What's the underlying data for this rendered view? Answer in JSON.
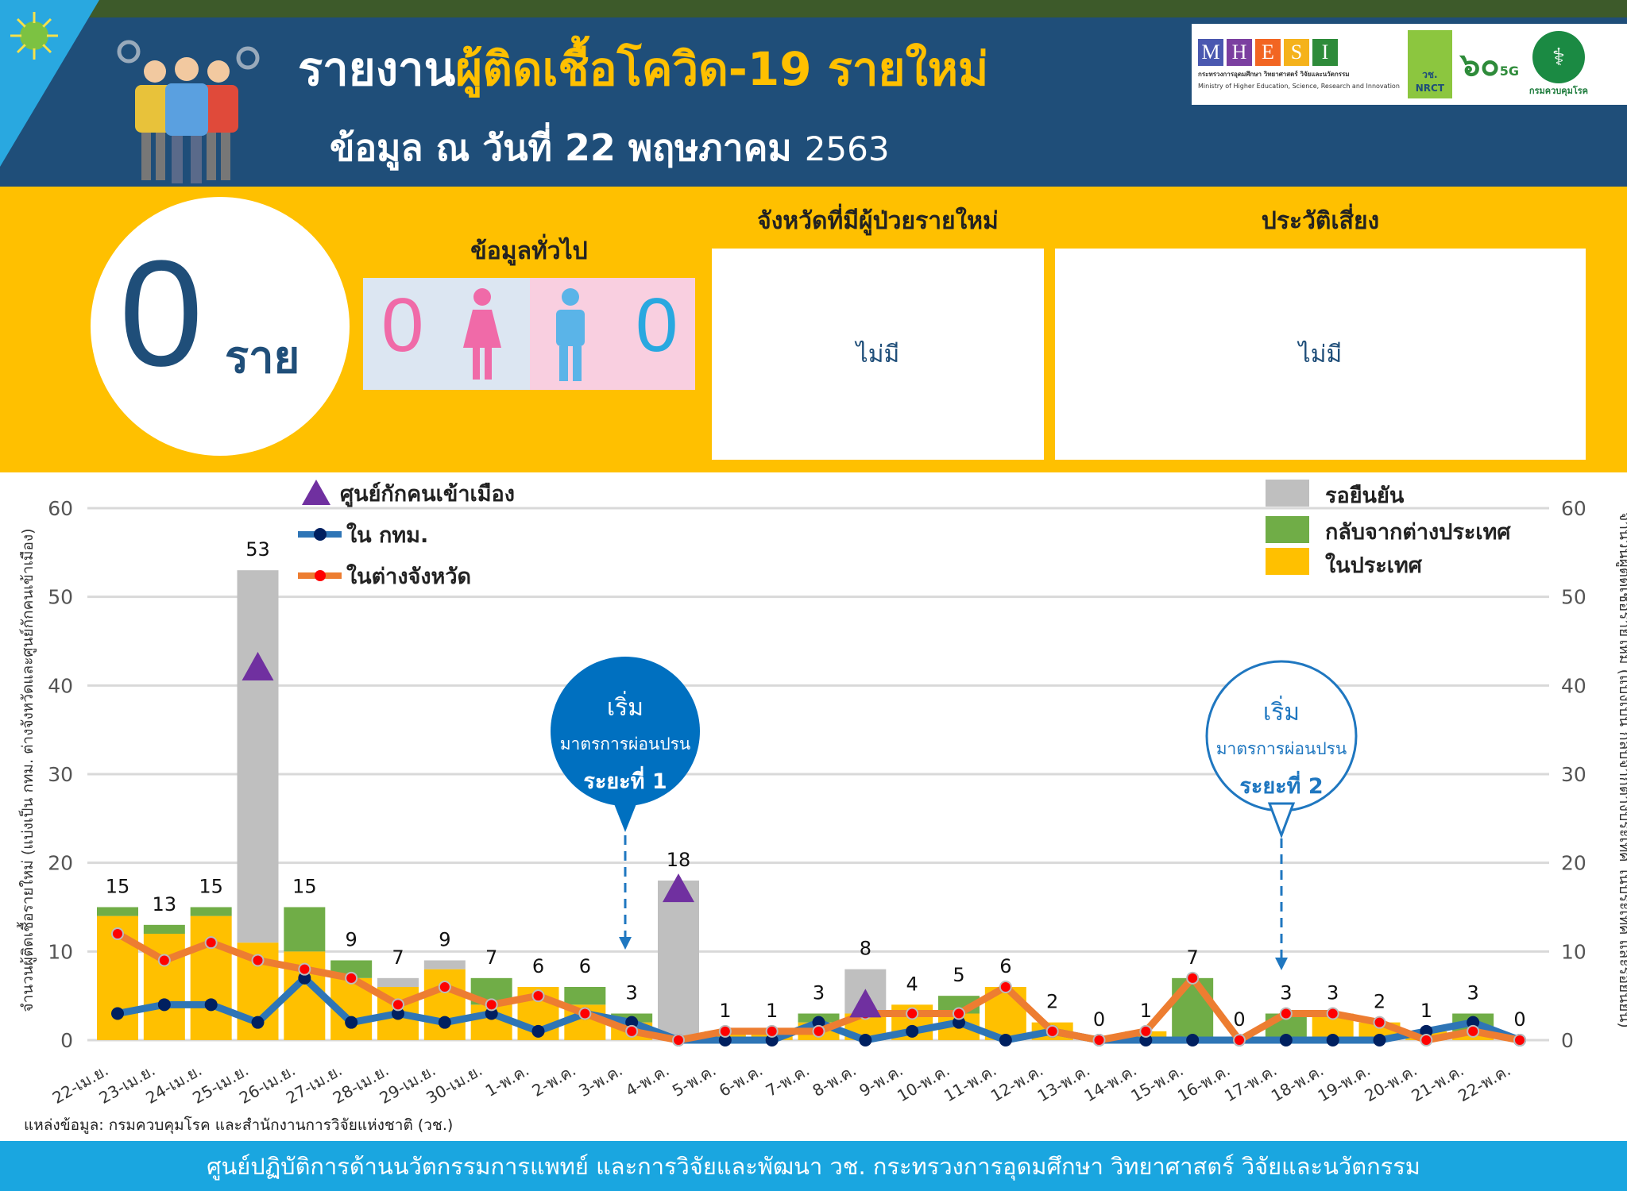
{
  "header": {
    "title_part1": "รายงาน",
    "title_part2": "ผู้ติดเชื้อโควิด-19 รายใหม่",
    "date_prefix": "ข้อมูล ณ วันที่ 22 พฤษภาคม",
    "date_year": "2563",
    "colors": {
      "background": "#1f4e79",
      "highlight": "#ffc000"
    }
  },
  "logos": {
    "mhesi_letters": [
      "M",
      "H",
      "E",
      "S",
      "I"
    ],
    "mhesi_colors": [
      "#4a58b0",
      "#7b3fa0",
      "#f26522",
      "#f5b21b",
      "#2e8b3a"
    ],
    "mhesi_thai": "กระทรวงการอุดมศึกษา วิทยาศาสตร์ วิจัยและนวัตกรรม",
    "mhesi_en": "Ministry of Higher Education, Science, Research and Innovation",
    "nrct_thai": "วช.",
    "nrct_en": "NRCT",
    "anniv": "๖๐",
    "anniv_sub": "5G",
    "moph_label": "กรมควบคุมโรค"
  },
  "summary": {
    "total_new": "0",
    "unit": "ราย",
    "general_title": "ข้อมูลทั่วไป",
    "female_count": "0",
    "male_count": "0",
    "province_title": "จังหวัดที่มีผู้ป่วยรายใหม่",
    "province_value": "ไม่มี",
    "risk_title": "ประวัติเสี่ยง",
    "risk_value": "ไม่มี"
  },
  "callouts": {
    "phase1": {
      "line1": "เริ่ม",
      "line2": "มาตรการผ่อนปรน",
      "line3": "ระยะที่ 1"
    },
    "phase2": {
      "line1": "เริ่ม",
      "line2": "มาตรการผ่อนปรน",
      "line3": "ระยะที่ 2"
    }
  },
  "chart_data": {
    "type": "bar",
    "stacked": true,
    "ylabel_left": "จำนวนผู้ติดเชื้อรายใหม่ (แบ่งเป็น กทม. ต่างจังหวัดและศูนย์กักคนเข้าเมือง)",
    "ylabel_right": "จำนวนผู้ติดเชื้อรายใหม่ (แบ่งเป็น กลับจากต่างประเทศ ในประเทศ และรอยืนยัน)",
    "ylim": [
      0,
      60
    ],
    "yticks": [
      0,
      10,
      20,
      30,
      40,
      50,
      60
    ],
    "grid": true,
    "categories": [
      "22-เม.ย.",
      "23-เม.ย.",
      "24-เม.ย.",
      "25-เม.ย.",
      "26-เม.ย.",
      "27-เม.ย.",
      "28-เม.ย.",
      "29-เม.ย.",
      "30-เม.ย.",
      "1-พ.ค.",
      "2-พ.ค.",
      "3-พ.ค.",
      "4-พ.ค.",
      "5-พ.ค.",
      "6-พ.ค.",
      "7-พ.ค.",
      "8-พ.ค.",
      "9-พ.ค.",
      "10-พ.ค.",
      "11-พ.ค.",
      "12-พ.ค.",
      "13-พ.ค.",
      "14-พ.ค.",
      "15-พ.ค.",
      "16-พ.ค.",
      "17-พ.ค.",
      "18-พ.ค.",
      "19-พ.ค.",
      "20-พ.ค.",
      "21-พ.ค.",
      "22-พ.ค."
    ],
    "totals": [
      15,
      13,
      15,
      53,
      15,
      9,
      7,
      9,
      7,
      6,
      6,
      3,
      18,
      1,
      1,
      3,
      8,
      4,
      5,
      6,
      2,
      0,
      1,
      7,
      0,
      3,
      3,
      2,
      1,
      3,
      0
    ],
    "bar_series": [
      {
        "name": "ในประเทศ",
        "color": "#ffc000",
        "values": [
          14,
          12,
          14,
          11,
          10,
          7,
          6,
          8,
          4,
          6,
          4,
          2,
          0,
          1,
          1,
          2,
          3,
          4,
          3,
          6,
          2,
          0,
          1,
          0,
          0,
          0,
          3,
          2,
          1,
          1,
          0
        ]
      },
      {
        "name": "กลับจากต่างประเทศ",
        "color": "#70ad47",
        "values": [
          1,
          1,
          1,
          0,
          5,
          2,
          0,
          0,
          3,
          0,
          2,
          1,
          0,
          0,
          0,
          1,
          0,
          0,
          2,
          0,
          0,
          0,
          0,
          7,
          0,
          3,
          0,
          0,
          0,
          2,
          0
        ]
      },
      {
        "name": "รอยืนยัน",
        "color": "#bfbfbf",
        "values": [
          0,
          0,
          0,
          42,
          0,
          0,
          1,
          1,
          0,
          0,
          0,
          0,
          18,
          0,
          0,
          0,
          5,
          0,
          0,
          0,
          0,
          0,
          0,
          0,
          0,
          0,
          0,
          0,
          0,
          0,
          0
        ]
      }
    ],
    "line_series": [
      {
        "name": "ใน กทม.",
        "color": "#2e75b6",
        "marker": "#002060",
        "values": [
          3,
          4,
          4,
          2,
          7,
          2,
          3,
          2,
          3,
          1,
          3,
          2,
          0,
          0,
          0,
          2,
          0,
          1,
          2,
          0,
          1,
          0,
          0,
          0,
          0,
          0,
          0,
          0,
          1,
          2,
          0
        ]
      },
      {
        "name": "ในต่างจังหวัด",
        "color": "#ed7d31",
        "marker": "#ff0000",
        "values": [
          12,
          9,
          11,
          9,
          8,
          7,
          4,
          6,
          4,
          5,
          3,
          1,
          0,
          1,
          1,
          1,
          3,
          3,
          3,
          6,
          1,
          0,
          1,
          7,
          0,
          3,
          3,
          2,
          0,
          1,
          0
        ]
      }
    ],
    "marker_series": {
      "name": "ศูนย์กักคนเข้าเมือง",
      "color": "#7030a0",
      "points": [
        {
          "category": "25-เม.ย.",
          "value": 42
        },
        {
          "category": "4-พ.ค.",
          "value": 17
        },
        {
          "category": "8-พ.ค.",
          "value": 4
        }
      ]
    },
    "legend_placement": "top-left and top-right"
  },
  "source": "แหล่งข้อมูล: กรมควบคุมโรค และสำนักงานการวิจัยแห่งชาติ (วช.)",
  "footer": "ศูนย์ปฏิบัติการด้านนวัตกรรมการแพทย์ และการวิจัยและพัฒนา  วช.   กระทรวงการอุดมศึกษา วิทยาศาสตร์ วิจัยและนวัตกรรม"
}
